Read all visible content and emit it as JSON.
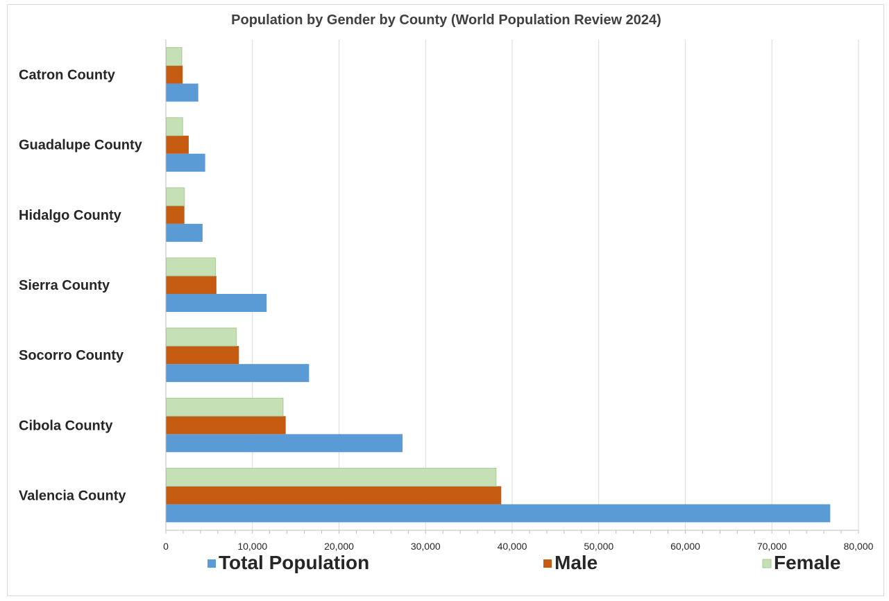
{
  "chart_data": {
    "type": "bar",
    "orientation": "horizontal",
    "title": "Population by Gender by County (World Population Review 2024)",
    "categories": [
      "Catron County",
      "Guadalupe County",
      "Hidalgo County",
      "Sierra County",
      "Socorro County",
      "Cibola County",
      "Valencia County"
    ],
    "series": [
      {
        "name": "Total Population",
        "color": "#5b9bd5",
        "values": [
          3700,
          4500,
          4200,
          11600,
          16500,
          27300,
          76700
        ]
      },
      {
        "name": "Male",
        "color": "#c55a11",
        "values": [
          1900,
          2600,
          2100,
          5800,
          8400,
          13800,
          38700
        ]
      },
      {
        "name": "Female",
        "color": "#c5e0b4",
        "values": [
          1800,
          1900,
          2100,
          5700,
          8100,
          13500,
          38100
        ]
      }
    ],
    "xlim": [
      0,
      80000
    ],
    "x_ticks": [
      0,
      10000,
      20000,
      30000,
      40000,
      50000,
      60000,
      70000,
      80000
    ],
    "x_tick_labels": [
      "0",
      "10,000",
      "20,000",
      "30,000",
      "40,000",
      "50,000",
      "60,000",
      "70,000",
      "80,000"
    ],
    "grid": true,
    "legend_position": "bottom"
  }
}
